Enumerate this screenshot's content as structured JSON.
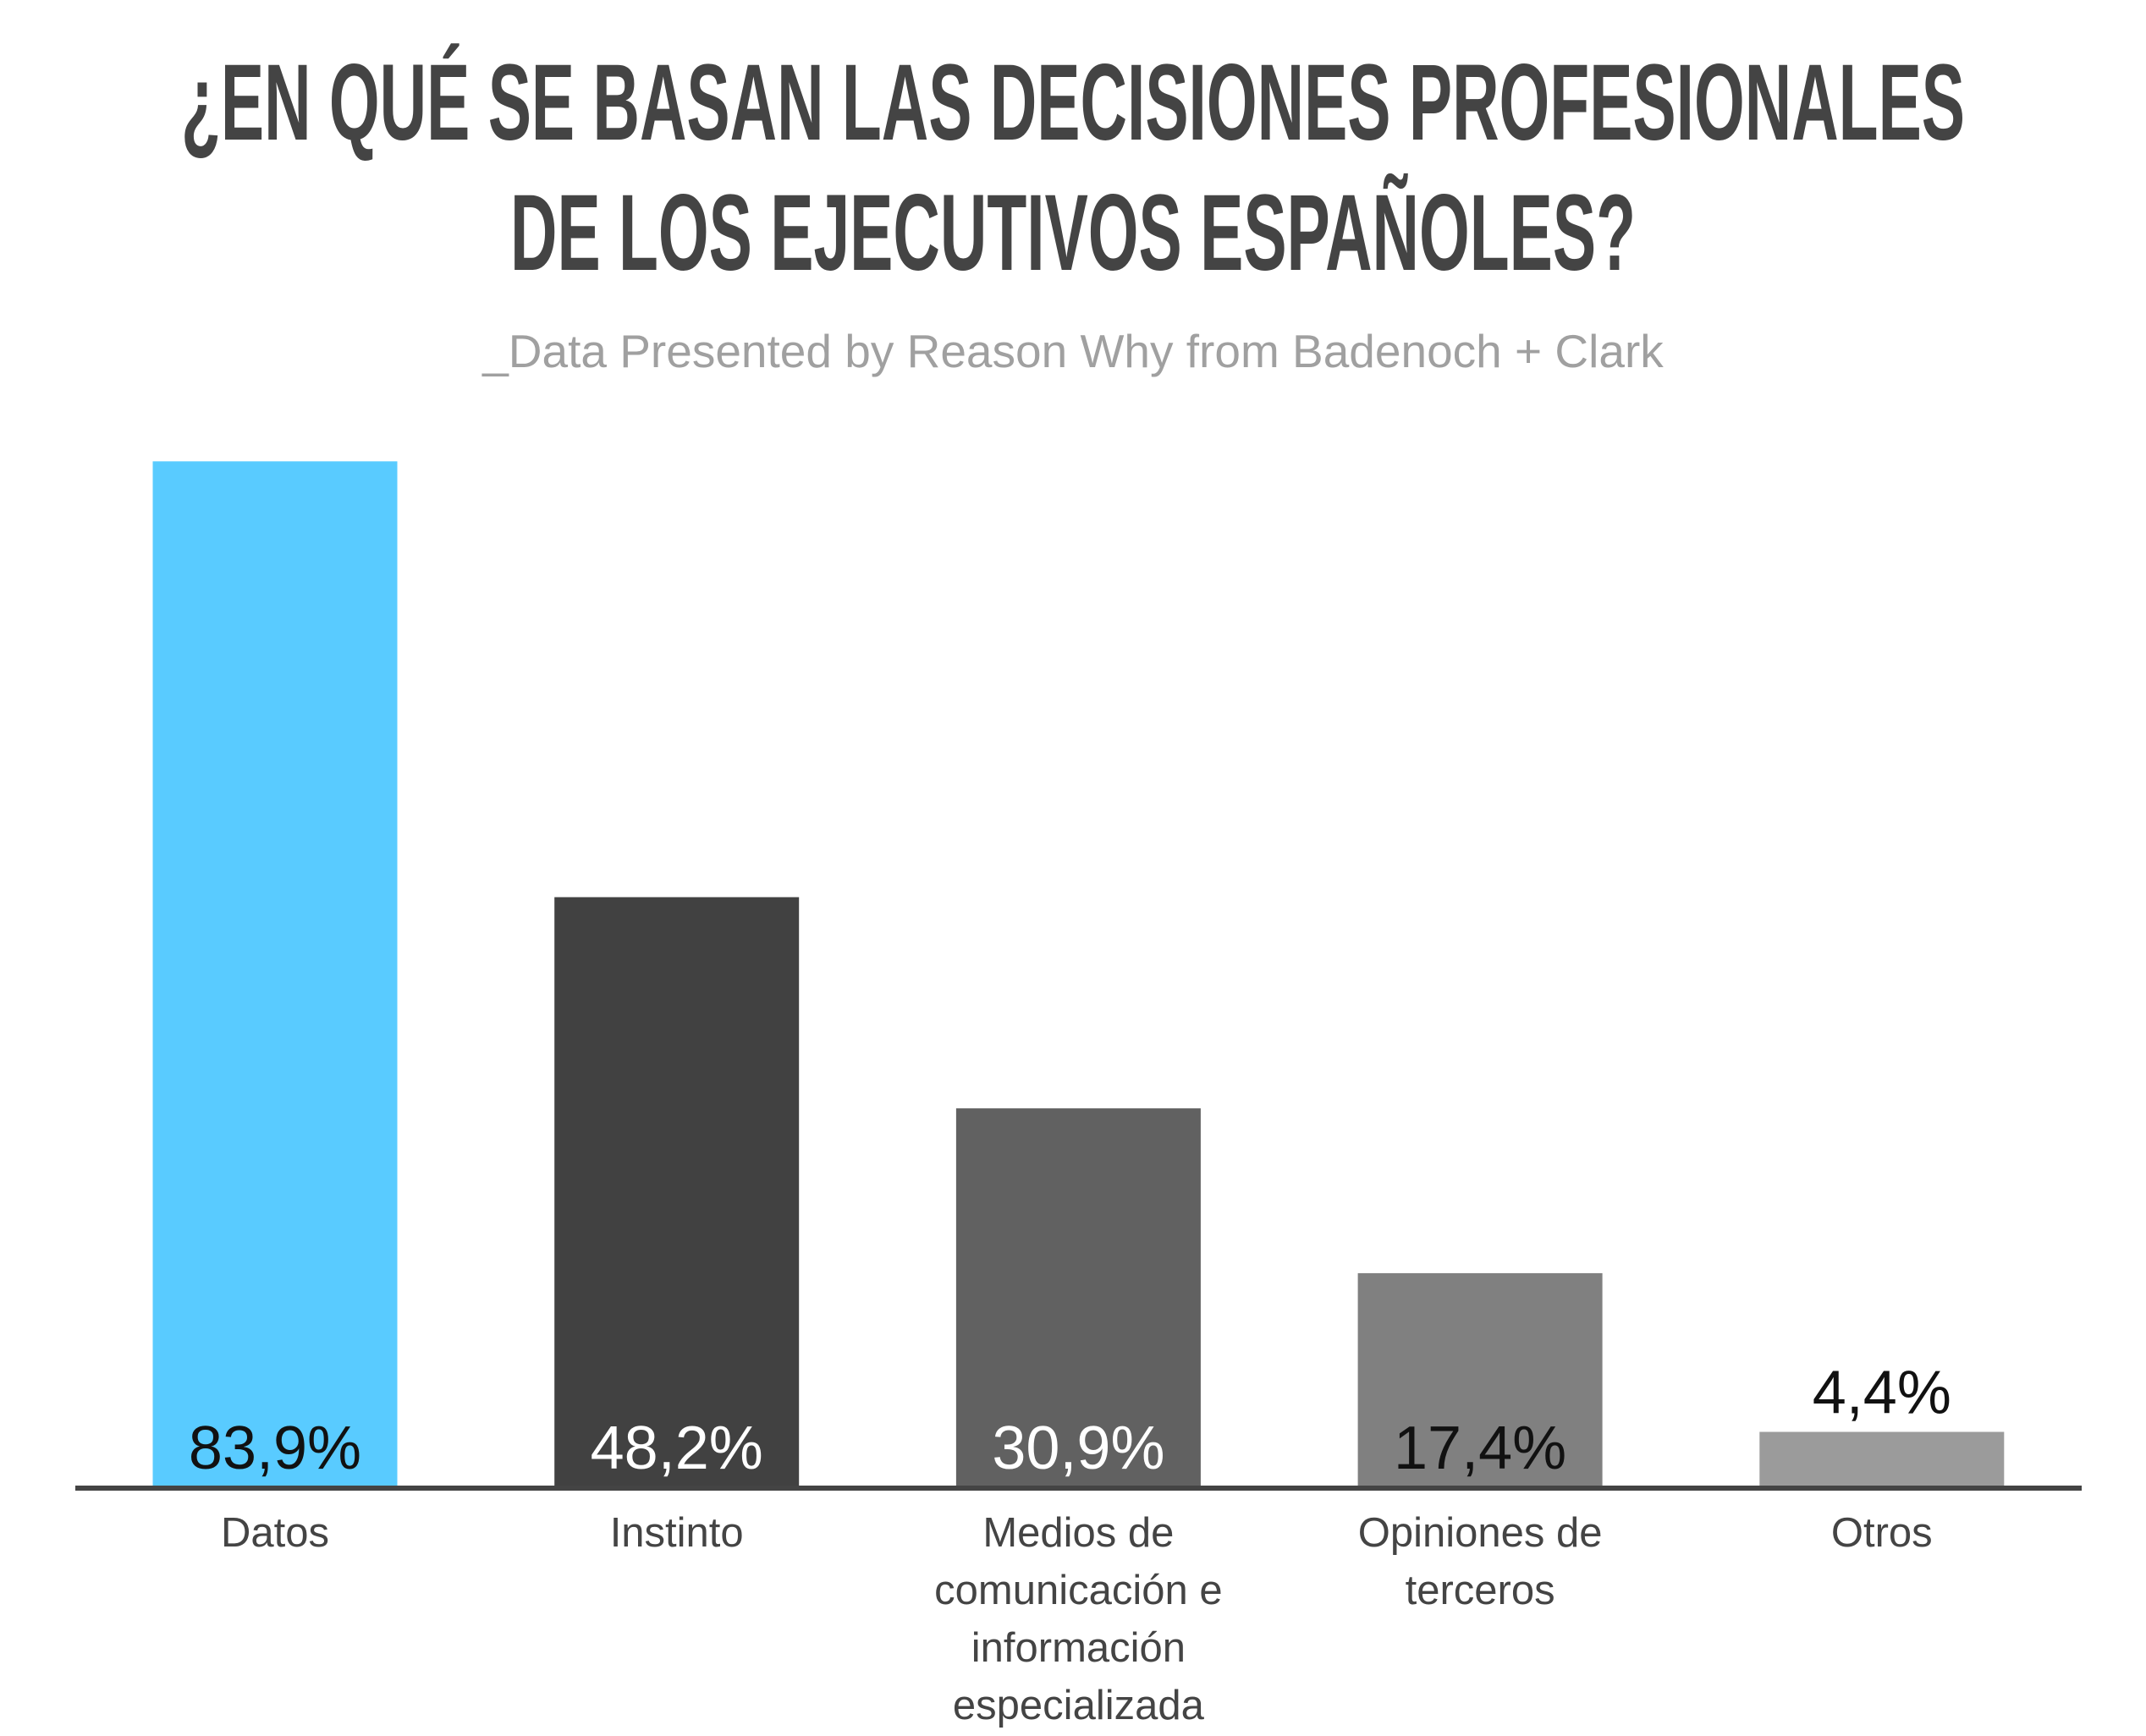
{
  "chart_data": {
    "type": "bar",
    "title": "¿EN QUÉ SE BASAN LAS DECISIONES PROFESIONALES DE LOS EJECUTIVOS ESPAÑOLES?",
    "subtitle": "_Data Presented by Reason Why from Badenoch + Clark",
    "categories": [
      "Datos",
      "Instinto",
      "Medios de comunicación e información especializada",
      "Opiniones de terceros",
      "Otros"
    ],
    "values": [
      83.9,
      48.2,
      30.9,
      17.4,
      4.4
    ],
    "value_labels": [
      "83,9%",
      "48,2%",
      "30,9%",
      "17,4%",
      "4,4%"
    ],
    "colors": [
      "#59cbff",
      "#414141",
      "#616161",
      "#808080",
      "#9b9b9b"
    ]
  }
}
